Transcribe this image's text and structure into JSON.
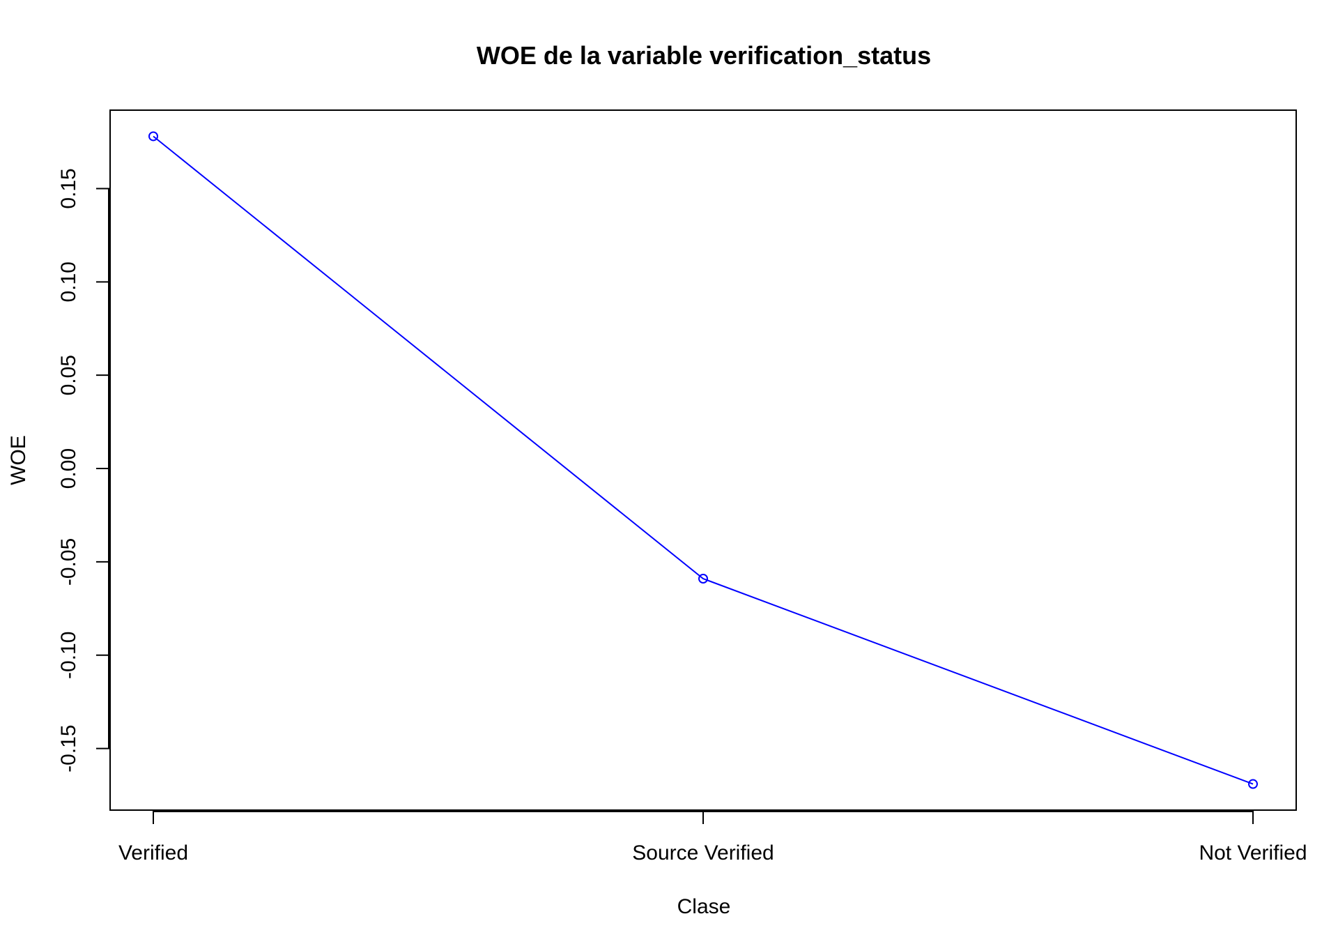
{
  "chart_data": {
    "type": "line",
    "title": "WOE de la variable verification_status",
    "xlabel": "Clase",
    "ylabel": "WOE",
    "categories": [
      "Verified",
      "Source Verified",
      "Not Verified"
    ],
    "series": [
      {
        "values": [
          0.178,
          -0.059,
          -0.169
        ],
        "color": "#0000ff",
        "marker": "open-circle"
      }
    ],
    "yticks": [
      -0.15,
      -0.1,
      -0.05,
      0.0,
      0.05,
      0.1,
      0.15
    ],
    "ytick_labels": [
      "-0.15",
      "-0.10",
      "-0.05",
      "0.00",
      "0.05",
      "0.10",
      "0.15"
    ],
    "ylim": [
      -0.183,
      0.192
    ],
    "grid": false,
    "legend": "none"
  }
}
